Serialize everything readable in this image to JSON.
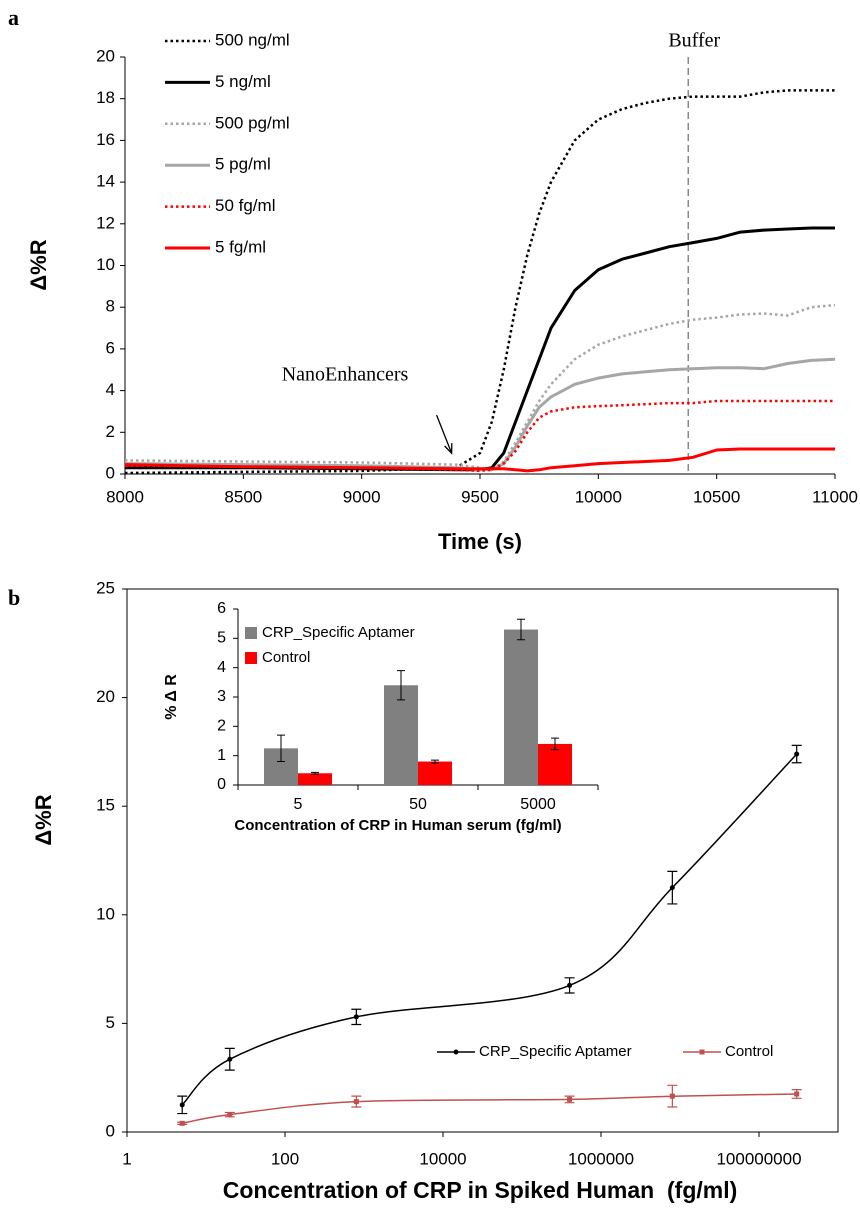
{
  "chart_data": [
    {
      "type": "line",
      "panel_label": "a",
      "x_label": "Time (s)",
      "y_label": "Δ%R",
      "x": [
        8000,
        8500,
        9000,
        9400,
        9500,
        9550,
        9600,
        9650,
        9700,
        9750,
        9800,
        9900,
        10000,
        10100,
        10200,
        10300,
        10400,
        10500,
        10600,
        10700,
        10800,
        10900,
        11000
      ],
      "xlim": [
        8000,
        11000
      ],
      "xticks": [
        8000,
        8500,
        9000,
        9500,
        10000,
        10500,
        11000
      ],
      "ylim": [
        0,
        20
      ],
      "yticks": [
        0,
        2,
        4,
        6,
        8,
        10,
        12,
        14,
        16,
        18,
        20
      ],
      "series": [
        {
          "name": "500 ng/ml",
          "color": "#000000",
          "dash": "dotted",
          "values": [
            0.05,
            0.1,
            0.15,
            0.3,
            1.0,
            2.5,
            5,
            8,
            10.5,
            12.5,
            14,
            16,
            17,
            17.5,
            17.8,
            18,
            18.1,
            18.1,
            18.1,
            18.3,
            18.4,
            18.4,
            18.4
          ]
        },
        {
          "name": "5 ng/ml",
          "color": "#000000",
          "dash": "solid",
          "values": [
            0.3,
            0.3,
            0.25,
            0.2,
            0.2,
            0.3,
            1,
            2.5,
            4,
            5.5,
            7,
            8.8,
            9.8,
            10.3,
            10.6,
            10.9,
            11.1,
            11.3,
            11.6,
            11.7,
            11.75,
            11.8,
            11.8
          ]
        },
        {
          "name": "500 pg/ml",
          "color": "#a6a6a6",
          "dash": "dotted",
          "values": [
            0.65,
            0.6,
            0.55,
            0.45,
            0.3,
            0.2,
            0.6,
            1.5,
            2.5,
            3.5,
            4.3,
            5.5,
            6.2,
            6.6,
            6.9,
            7.2,
            7.4,
            7.5,
            7.65,
            7.7,
            7.6,
            8.0,
            8.1
          ]
        },
        {
          "name": "5 pg/ml",
          "color": "#a6a6a6",
          "dash": "solid",
          "values": [
            0.5,
            0.45,
            0.4,
            0.3,
            0.2,
            0.2,
            0.5,
            1.3,
            2.3,
            3.2,
            3.7,
            4.3,
            4.6,
            4.8,
            4.9,
            5.0,
            5.05,
            5.1,
            5.1,
            5.05,
            5.3,
            5.45,
            5.5
          ]
        },
        {
          "name": "50 fg/ml",
          "color": "#ff0000",
          "dash": "dotted",
          "values": [
            0.4,
            0.35,
            0.3,
            0.2,
            0.15,
            0.2,
            0.5,
            1.1,
            2,
            2.7,
            3,
            3.2,
            3.25,
            3.3,
            3.35,
            3.4,
            3.4,
            3.5,
            3.5,
            3.5,
            3.5,
            3.5,
            3.5
          ]
        },
        {
          "name": "5 fg/ml",
          "color": "#ff0000",
          "dash": "solid",
          "values": [
            0.45,
            0.35,
            0.3,
            0.25,
            0.25,
            0.25,
            0.25,
            0.2,
            0.15,
            0.2,
            0.3,
            0.4,
            0.5,
            0.55,
            0.6,
            0.65,
            0.8,
            1.15,
            1.2,
            1.2,
            1.2,
            1.2,
            1.2
          ]
        }
      ],
      "annotations": [
        {
          "text": "NanoEnhancers",
          "x": 9380,
          "y": 1
        },
        {
          "text": "Buffer",
          "x": 10380
        }
      ]
    },
    {
      "type": "line",
      "panel_label": "b",
      "x_label": "Concentration of CRP in Spiked Human  (fg/ml)",
      "y_label": "Δ%R",
      "log_x": true,
      "x": [
        5,
        20,
        800,
        400000,
        8000000,
        300000000
      ],
      "xlim": [
        1,
        1000000000
      ],
      "xticks": [
        1,
        100,
        10000,
        1000000,
        100000000
      ],
      "ylim": [
        0,
        25
      ],
      "yticks": [
        0,
        5,
        10,
        15,
        20,
        25
      ],
      "legend": "lower right",
      "series": [
        {
          "name": "CRP_Specific Aptamer",
          "color": "#000000",
          "marker": "circle",
          "values": [
            1.25,
            3.35,
            5.3,
            6.75,
            11.25,
            17.4
          ],
          "errors": [
            0.4,
            0.5,
            0.35,
            0.35,
            0.75,
            0.4
          ]
        },
        {
          "name": "Control",
          "color": "#c0504d",
          "marker": "square",
          "values": [
            0.4,
            0.8,
            1.4,
            1.5,
            1.65,
            1.75
          ],
          "errors": [
            0.05,
            0.1,
            0.25,
            0.15,
            0.5,
            0.2
          ]
        }
      ]
    },
    {
      "type": "bar",
      "x_label": "Concentration of CRP in Human serum (fg/ml)",
      "y_label": "% Δ R",
      "categories": [
        "5",
        "50",
        "5000"
      ],
      "ylim": [
        0,
        6
      ],
      "yticks": [
        0,
        1,
        2,
        3,
        4,
        5,
        6
      ],
      "legend": "upper left",
      "series": [
        {
          "name": "CRP_Specific Aptamer",
          "color": "#808080",
          "values": [
            1.25,
            3.4,
            5.3
          ],
          "errors": [
            0.45,
            0.5,
            0.35
          ]
        },
        {
          "name": "Control",
          "color": "#ff0000",
          "values": [
            0.4,
            0.8,
            1.4
          ],
          "errors": [
            0.03,
            0.05,
            0.2
          ]
        }
      ]
    }
  ]
}
